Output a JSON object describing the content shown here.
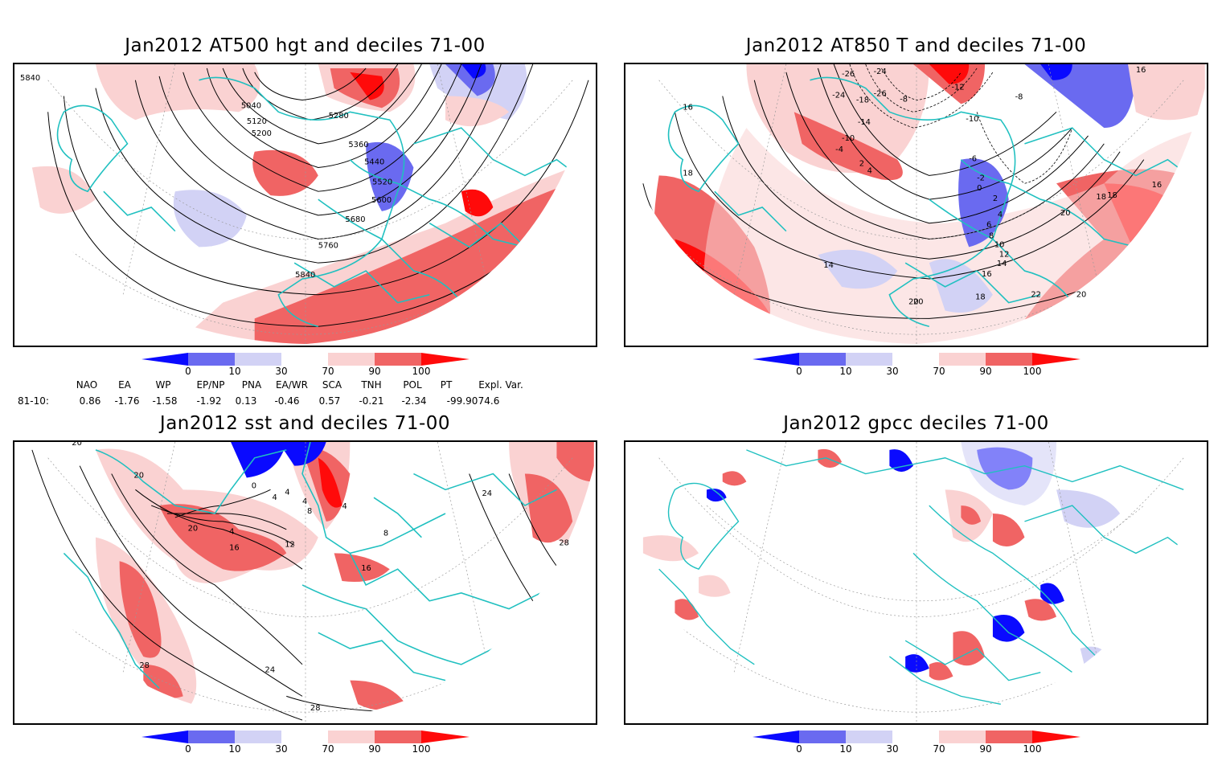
{
  "panels": [
    {
      "title": "Jan2012 AT500 hgt and deciles 71-00",
      "contour_labels": [
        "5840",
        "5040",
        "5120",
        "5200",
        "5280",
        "5360",
        "5440",
        "5520",
        "5600",
        "5680",
        "5760",
        "5840"
      ]
    },
    {
      "title": "Jan2012 AT850 T and deciles 71-00",
      "contour_labels": [
        "-26",
        "-24",
        "-24",
        "-18",
        "-26",
        "-12",
        "-8",
        "-8",
        "-10",
        "-14",
        "-10",
        "-4",
        "2",
        "4",
        "-6",
        "-2",
        "0",
        "2",
        "4",
        "6",
        "8",
        "10",
        "12",
        "14",
        "16",
        "18",
        "20",
        "22",
        "20",
        "20",
        "18",
        "16",
        "16",
        "18",
        "14",
        "16",
        "18",
        "20"
      ]
    },
    {
      "title": "Jan2012 sst and deciles 71-00",
      "contour_labels": [
        "20",
        "20",
        "0",
        "4",
        "4",
        "4",
        "8",
        "4",
        "20",
        "4",
        "16",
        "12",
        "8",
        "16",
        "24",
        "28",
        "28",
        "24",
        "28"
      ]
    },
    {
      "title": "Jan2012 gpcc deciles 71-00",
      "contour_labels": []
    }
  ],
  "colorbar": {
    "ticks": [
      "0",
      "10",
      "30",
      "70",
      "90",
      "100"
    ],
    "colors": {
      "0-10": "#0a0aff",
      "10-30": "#6a6af0",
      "30-70low": "#d2d2f5",
      "70-90": "#fad2d2",
      "90-100": "#f06464",
      "100+": "#ff0a0a"
    }
  },
  "indices": {
    "headers": [
      "NAO",
      "EA",
      "WP",
      "EP/NP",
      "PNA",
      "EA/WR",
      "SCA",
      "TNH",
      "POL",
      "PT",
      "Expl. Var."
    ],
    "row_label": "81-10:",
    "values": [
      "0.86",
      "-1.76",
      "-1.58",
      "-1.92",
      "0.13",
      "-0.46",
      "0.57",
      "-0.21",
      "-2.34",
      "-99.90",
      "74.6"
    ]
  },
  "colors": {
    "coast": "#20c0c0",
    "contour": "#000000",
    "warm": "#f06464",
    "warm_light": "#fad2d2",
    "warm_strong": "#ff0a0a",
    "cool_light": "#d2d2f5",
    "cool": "#6a6af0",
    "cool_strong": "#0a0aff"
  }
}
